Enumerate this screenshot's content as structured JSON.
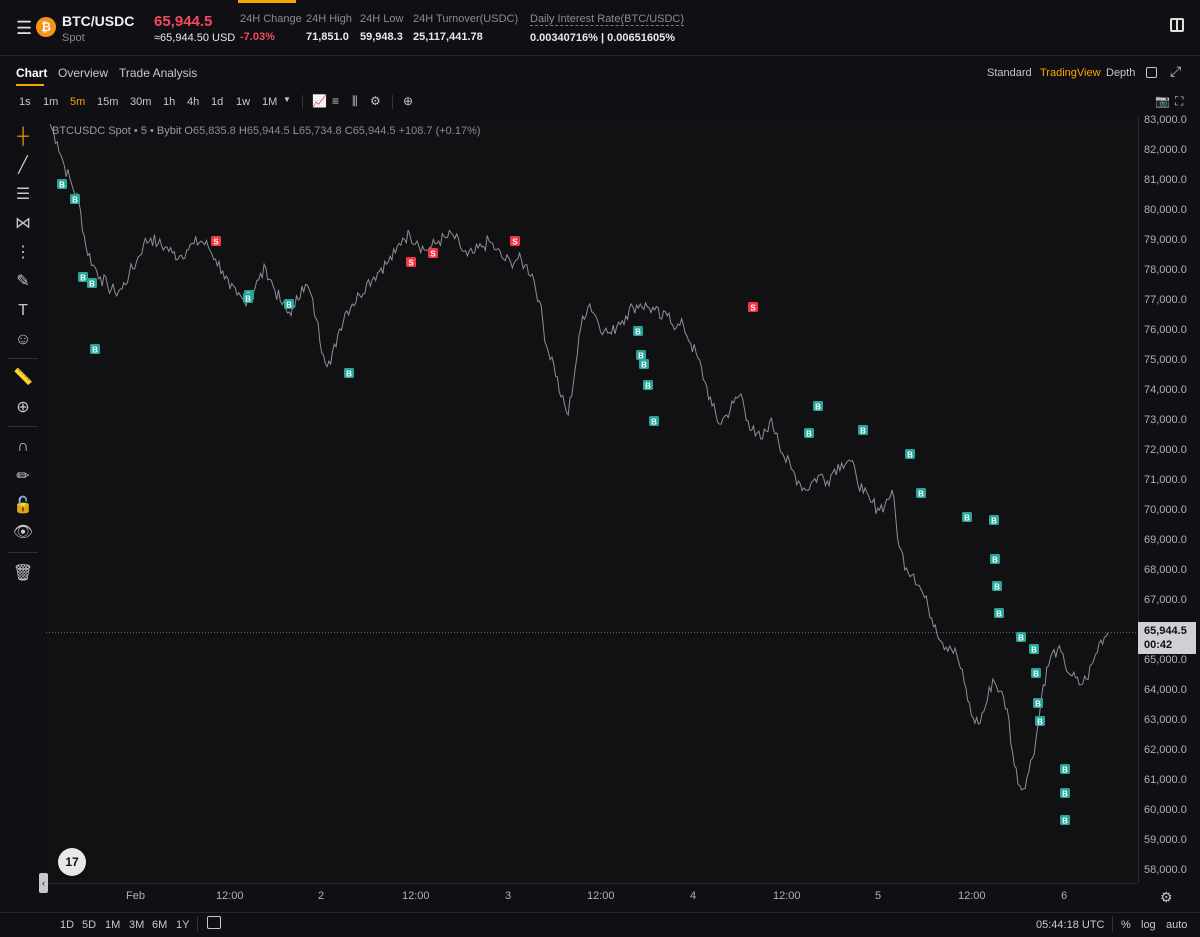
{
  "header": {
    "pair": "BTC/USDC",
    "market": "Spot",
    "coin_icon": "bitcoin-icon",
    "price": "65,944.5",
    "price_usd": "≈65,944.50 USD",
    "stats": [
      {
        "label": "24H Change",
        "value": "-7.03%"
      },
      {
        "label": "24H High",
        "value": "71,851.0"
      },
      {
        "label": "24H Low",
        "value": "59,948.3"
      },
      {
        "label": "24H Turnover(USDC)",
        "value": "25,117,441.78"
      },
      {
        "label": "Daily Interest Rate(BTC/USDC)",
        "value": "0.00340716% | 0.00651605%"
      }
    ],
    "colors": {
      "accent": "#f7a600",
      "down": "#f2495e",
      "buy_marker": "#26a69a",
      "sell_marker": "#f23645"
    }
  },
  "tabs": [
    "Chart",
    "Overview",
    "Trade Analysis"
  ],
  "view_options": [
    "Standard",
    "TradingView",
    "Depth"
  ],
  "timeframes": [
    "1s",
    "1m",
    "5m",
    "15m",
    "30m",
    "1h",
    "4h",
    "1d",
    "1w",
    "1M"
  ],
  "active_timeframe": "5m",
  "ohlc": {
    "symbol": "BTCUSDC Spot • 5 • Bybit",
    "o_label": "O",
    "o": "65,835.8",
    "h_label": "H",
    "h": "65,944.5",
    "l_label": "L",
    "l": "65,734.8",
    "c_label": "C",
    "c": "65,944.5",
    "change": "+108.7 (+0.17%)"
  },
  "yaxis_ticks": [
    "83,000.0",
    "82,000.0",
    "81,000.0",
    "80,000.0",
    "79,000.0",
    "78,000.0",
    "77,000.0",
    "76,000.0",
    "75,000.0",
    "74,000.0",
    "73,000.0",
    "72,000.0",
    "71,000.0",
    "70,000.0",
    "69,000.0",
    "68,000.0",
    "67,000.0",
    "66,000.0",
    "65,000.0",
    "64,000.0",
    "63,000.0",
    "62,000.0",
    "61,000.0",
    "60,000.0",
    "59,000.0",
    "58,000.0"
  ],
  "last_price_tag": {
    "price": "65,944.5",
    "countdown": "00:42"
  },
  "xaxis_ticks": [
    "Feb",
    "12:00",
    "2",
    "12:00",
    "3",
    "12:00",
    "4",
    "12:00",
    "5",
    "12:00",
    "6"
  ],
  "marker_labels": {
    "buy": "B",
    "sell": "S"
  },
  "bottom": {
    "ranges": [
      "1D",
      "5D",
      "1M",
      "3M",
      "6M",
      "1Y"
    ],
    "clock": "05:44:18 UTC",
    "options": [
      "%",
      "log",
      "auto"
    ]
  },
  "chart_data": {
    "type": "line",
    "x_labels": [
      "Feb",
      "12:00",
      "2",
      "12:00",
      "3",
      "12:00",
      "4",
      "12:00",
      "5",
      "12:00",
      "6"
    ],
    "ylim": [
      58000,
      83000
    ],
    "series": [
      {
        "values": [
          82900,
          82300,
          81500,
          80900,
          80300,
          78800,
          78200,
          77800,
          77500,
          77300,
          77400,
          77900,
          78300,
          78900,
          79100,
          78900,
          78800,
          78600,
          78500,
          78700,
          78900,
          79000,
          78800,
          78400,
          78000,
          77400,
          77200,
          77000,
          77300,
          77700,
          78100,
          77500,
          77000,
          76600,
          76800,
          77500,
          77400,
          76400,
          75200,
          74900,
          75900,
          76600,
          76900,
          77200,
          77600,
          77800,
          78100,
          78300,
          78600,
          79100,
          79200,
          79000,
          78700,
          78800,
          79000,
          79100,
          79200,
          78800,
          78500,
          78600,
          78800,
          79000,
          78700,
          78400,
          78300,
          78400,
          78200,
          77900,
          77000,
          75500,
          74900,
          73800,
          73200,
          74800,
          76500,
          76900,
          76400,
          76000,
          75900,
          76300,
          76500,
          76800,
          76900,
          76800,
          76700,
          76400,
          76600,
          76100,
          76200,
          75600,
          75100,
          74300,
          73500,
          72900,
          73200,
          73600,
          73900,
          73000,
          72500,
          72400,
          73000,
          72600,
          71800,
          71400,
          71000,
          70700,
          71000,
          71200,
          71000,
          71400,
          71600,
          71700,
          71200,
          70600,
          70300,
          70100,
          70200,
          70700,
          68800,
          68100,
          67900,
          67400,
          66800,
          66200,
          65600,
          65500,
          65200,
          64300,
          63200,
          62900,
          63500,
          64400,
          64000,
          63400,
          61500,
          60700,
          61300,
          62400,
          64200,
          65100,
          65400,
          64900,
          64500,
          64200,
          64400,
          65000,
          65700,
          65944.5
        ]
      }
    ],
    "buy_markers_price": [
      80900,
      80400,
      77800,
      77600,
      75400,
      77200,
      77100,
      76900,
      74600,
      76000,
      75200,
      74900,
      74200,
      73000,
      72600,
      73500,
      72700,
      71900,
      70600,
      69800,
      69700,
      68400,
      67500,
      66600,
      65800,
      65400,
      64600,
      63600,
      63000,
      61400,
      60600,
      59700
    ],
    "sell_markers_price": [
      79000,
      78300,
      78600,
      79000,
      76800
    ]
  }
}
